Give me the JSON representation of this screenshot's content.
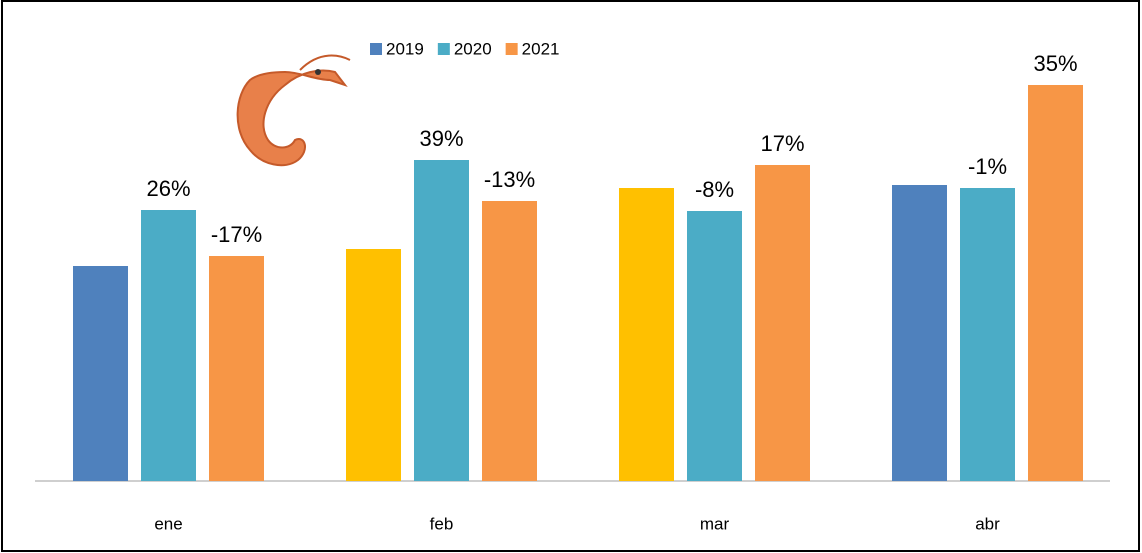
{
  "chart_data": {
    "type": "bar",
    "categories": [
      "ene",
      "feb",
      "mar",
      "abr"
    ],
    "series": [
      {
        "name": "2019",
        "color": "#4f81bd",
        "colors": [
          "#4f81bd",
          "#ffc000",
          "#ffc000",
          "#4f81bd"
        ],
        "values": [
          215,
          232,
          293,
          296
        ],
        "data_labels": [
          null,
          null,
          null,
          null
        ]
      },
      {
        "name": "2020",
        "color": "#4bacc6",
        "values": [
          271,
          321,
          270,
          293
        ],
        "data_labels": [
          "26%",
          "39%",
          "-8%",
          "-1%"
        ]
      },
      {
        "name": "2021",
        "color": "#f79646",
        "values": [
          225,
          280,
          316,
          396
        ],
        "data_labels": [
          "-17%",
          "-13%",
          "17%",
          "35%"
        ]
      }
    ],
    "ylim": [
      0,
      400
    ]
  }
}
